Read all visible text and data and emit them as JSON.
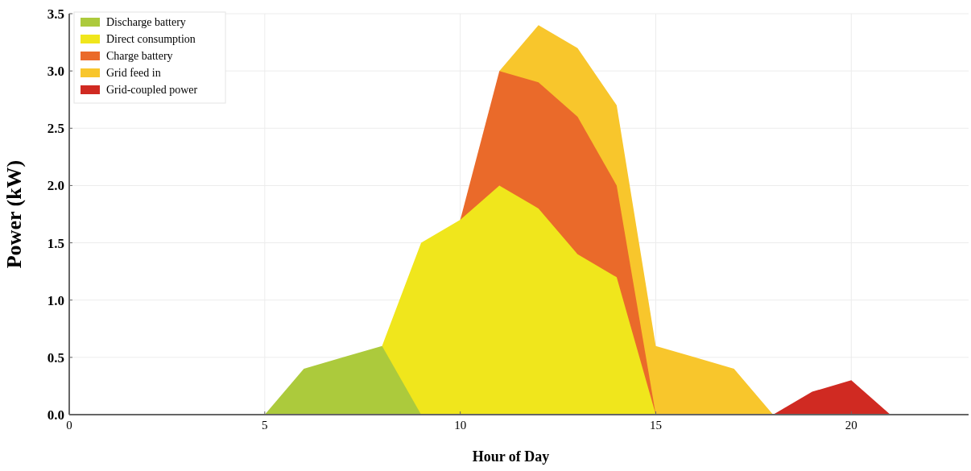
{
  "chart_data": {
    "type": "area",
    "xlabel": "Hour of Day",
    "ylabel": "Power (kW)",
    "xlim": [
      0,
      23
    ],
    "ylim": [
      0,
      3.5
    ],
    "xticks": [
      0,
      5,
      10,
      15,
      20
    ],
    "yticks": [
      {
        "value": 0,
        "label": "0.0"
      },
      {
        "value": 0.5,
        "label": "0.5"
      },
      {
        "value": 1,
        "label": "1.0"
      },
      {
        "value": 1.5,
        "label": "1.5"
      },
      {
        "value": 2,
        "label": "2.0"
      },
      {
        "value": 2.5,
        "label": "2.5"
      },
      {
        "value": 3,
        "label": "3.0"
      },
      {
        "value": 3.5,
        "label": "3.5"
      }
    ],
    "grid": true,
    "legend": "top left",
    "series": [
      {
        "name": "Discharge battery",
        "color": "#acca3c",
        "x": [
          5,
          6,
          7,
          8,
          9
        ],
        "values": [
          0,
          0.4,
          0.5,
          0.6,
          0
        ]
      },
      {
        "name": "Direct consumption",
        "color": "#f0e61c",
        "x": [
          8,
          9,
          10,
          11,
          12,
          13,
          14,
          15
        ],
        "values": [
          0.6,
          1.5,
          1.7,
          2.0,
          1.8,
          1.4,
          1.2,
          0
        ]
      },
      {
        "name": "Charge battery",
        "color": "#ea6a2a",
        "x": [
          10,
          11,
          12,
          13,
          14,
          15
        ],
        "values": [
          1.7,
          3.0,
          2.9,
          2.6,
          2.0,
          0
        ]
      },
      {
        "name": "Grid feed in",
        "color": "#f8c62c",
        "x": [
          11,
          12,
          13,
          14,
          15,
          16,
          17,
          18
        ],
        "values": [
          3.0,
          3.4,
          3.2,
          2.7,
          0.6,
          0.5,
          0.4,
          0
        ]
      },
      {
        "name": "Grid-coupled power",
        "color": "#d02a22",
        "x": [
          18,
          19,
          20,
          21
        ],
        "values": [
          0,
          0.2,
          0.3,
          0
        ]
      }
    ]
  }
}
